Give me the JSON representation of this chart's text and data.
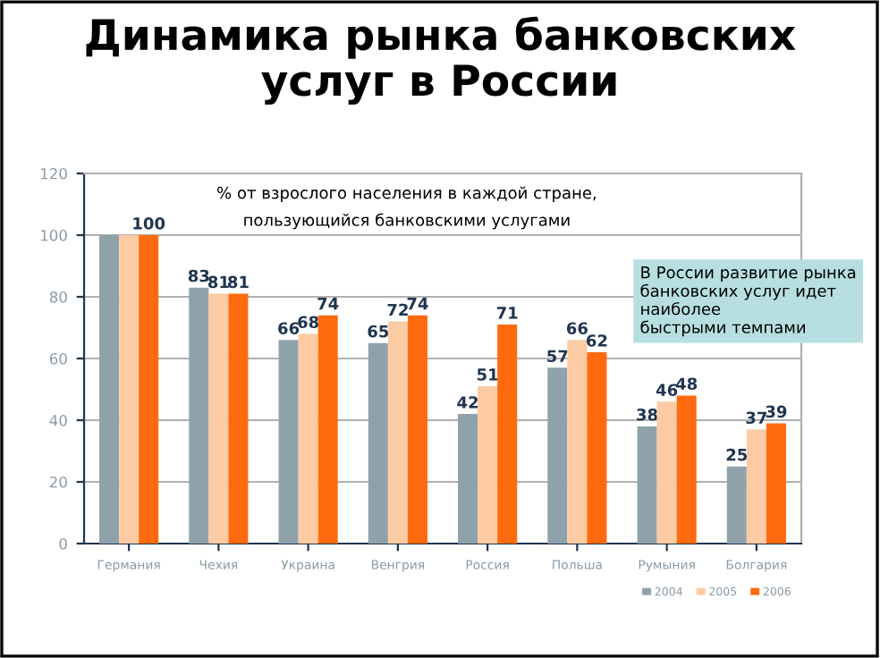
{
  "chart_data": {
    "type": "bar",
    "title": "Динамика рынка банковских\nуслуг в России",
    "categories": [
      "Германия",
      "Чехия",
      "Украина",
      "Венгрия",
      "Россия",
      "Польша",
      "Румыния",
      "Болгария"
    ],
    "series": [
      {
        "name": "2004",
        "color": "#8fa2ab",
        "values": [
          100,
          83,
          66,
          65,
          42,
          57,
          38,
          25
        ],
        "value_labels": [
          null,
          "83",
          "66",
          "65",
          "42",
          "57",
          "38",
          "25"
        ]
      },
      {
        "name": "2005",
        "color": "#fccba3",
        "values": [
          100,
          81,
          68,
          72,
          51,
          66,
          46,
          37
        ],
        "value_labels": [
          null,
          "81",
          "68",
          "72",
          "51",
          "66",
          "46",
          "37"
        ]
      },
      {
        "name": "2006",
        "color": "#ff6a0e",
        "values": [
          100,
          81,
          74,
          74,
          71,
          62,
          48,
          39
        ],
        "value_labels": [
          "100",
          "81",
          "74",
          "74",
          "71",
          "62",
          "48",
          "39"
        ]
      }
    ],
    "ylim": [
      0,
      120
    ],
    "yticks": [
      0,
      20,
      40,
      60,
      80,
      100,
      120
    ],
    "grid": "y",
    "legend": "bottom right",
    "annotations": [
      "% от взрослого населения в каждой стране,\nпользующийся банковскими услугами",
      "В России развитие рынка\nбанковских услуг идет\nнаиболее\nбыстрыми темпами"
    ]
  }
}
